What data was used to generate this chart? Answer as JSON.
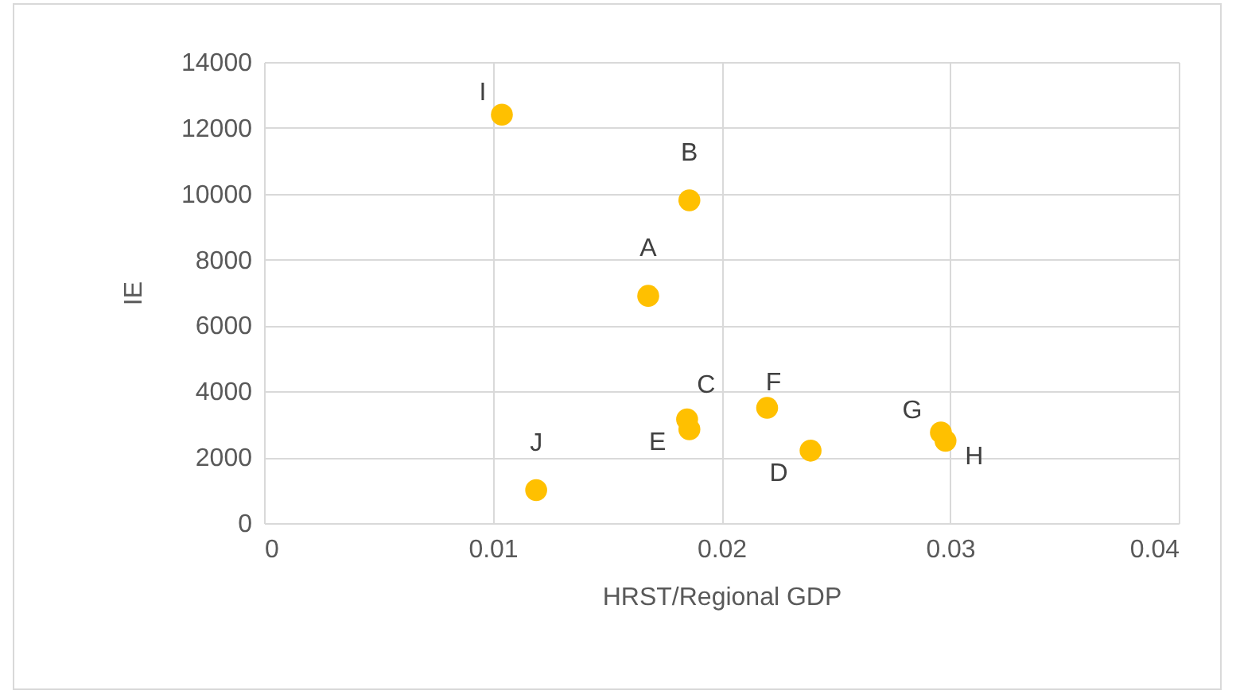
{
  "chart_data": {
    "type": "scatter",
    "xlabel": "HRST/Regional GDP",
    "ylabel": "IE",
    "x": [
      0.0104,
      0.0186,
      0.0168,
      0.0185,
      0.0186,
      0.022,
      0.0239,
      0.0296,
      0.0298,
      0.0119
    ],
    "series": [
      {
        "color": "#ffc000",
        "values": [
          12400,
          9800,
          6900,
          3150,
          2850,
          3500,
          2200,
          2750,
          2500,
          1000
        ]
      }
    ],
    "annotations": [
      {
        "text": "I",
        "x": 0.0104,
        "y": 12400
      },
      {
        "text": "B",
        "x": 0.0186,
        "y": 9800
      },
      {
        "text": "A",
        "x": 0.0168,
        "y": 6900
      },
      {
        "text": "C",
        "x": 0.0185,
        "y": 3150
      },
      {
        "text": "E",
        "x": 0.0186,
        "y": 2850
      },
      {
        "text": "F",
        "x": 0.022,
        "y": 3500
      },
      {
        "text": "D",
        "x": 0.0239,
        "y": 2200
      },
      {
        "text": "G",
        "x": 0.0296,
        "y": 2750
      },
      {
        "text": "H",
        "x": 0.0298,
        "y": 2500
      },
      {
        "text": "J",
        "x": 0.0119,
        "y": 1000
      }
    ],
    "xlim": [
      0,
      0.04
    ],
    "xticks": [
      {
        "value": 0,
        "label": "0"
      },
      0.01,
      0.02,
      0.03,
      0.04
    ],
    "ylim": [
      0,
      14000
    ],
    "yticks": [
      0,
      2000,
      4000,
      6000,
      8000,
      10000,
      12000,
      14000
    ],
    "grid": true,
    "marker": "circle"
  }
}
